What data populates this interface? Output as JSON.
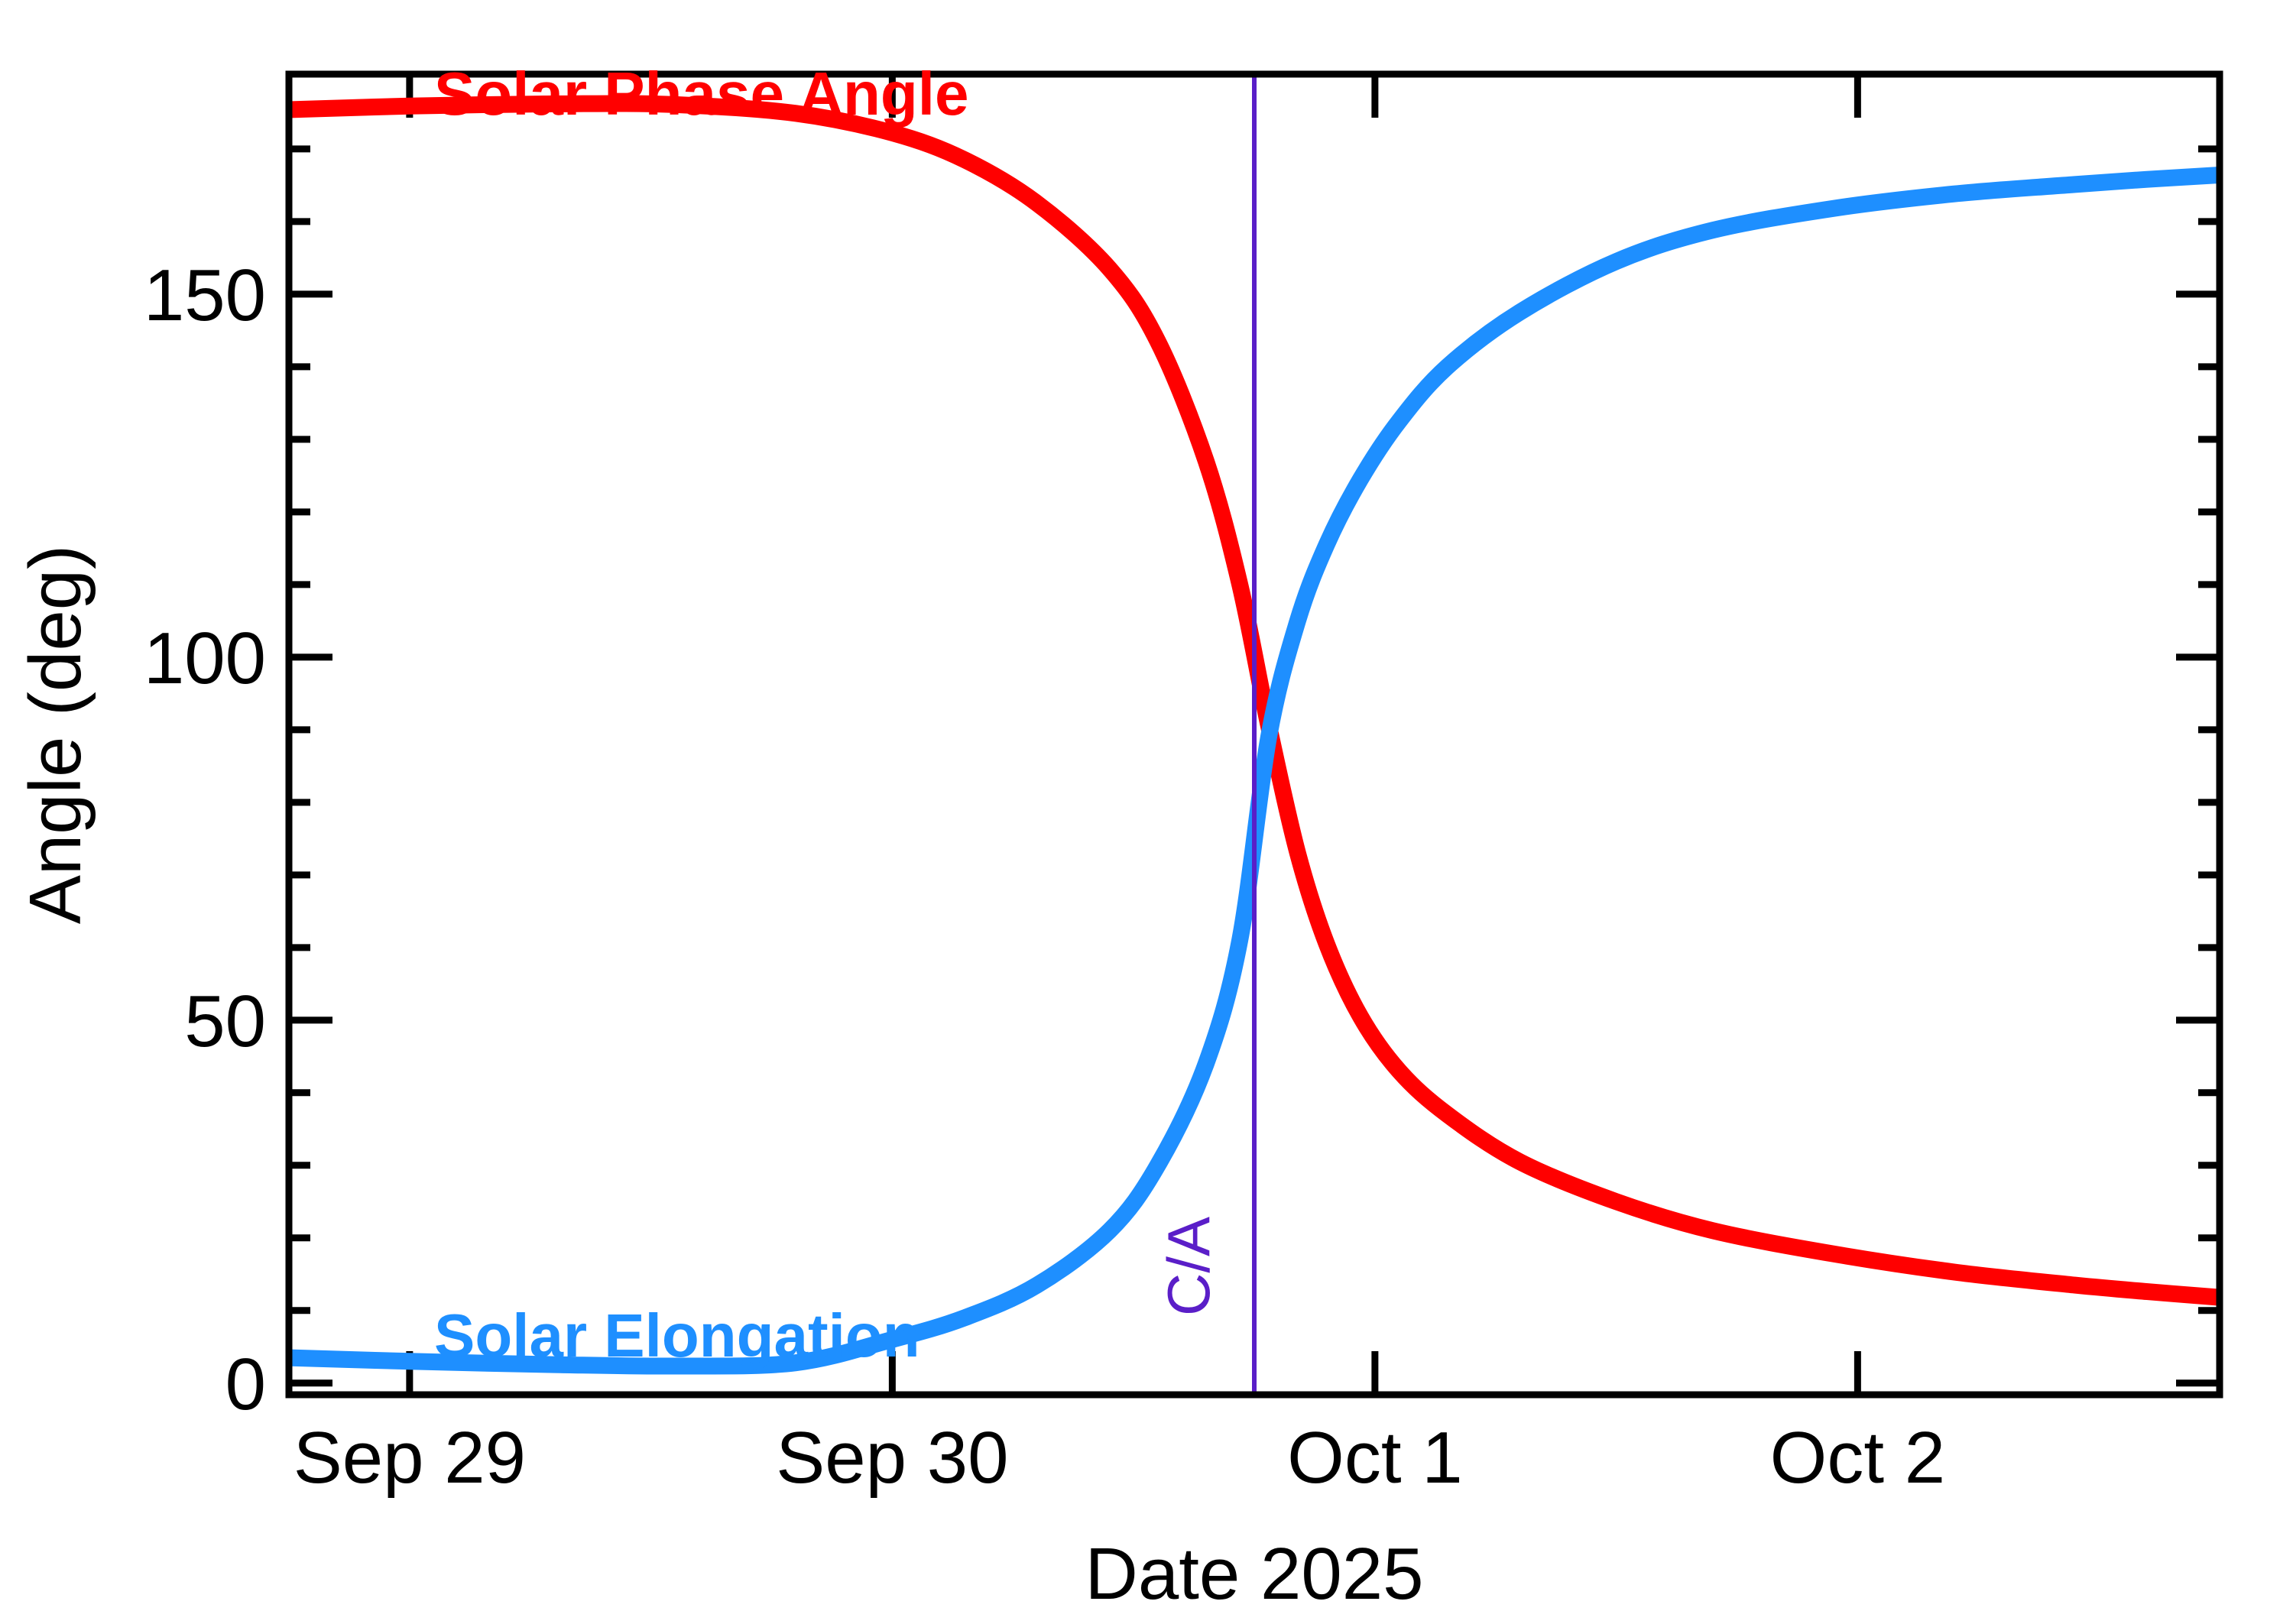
{
  "figure": {
    "x_axis_title": "Date 2025",
    "y_axis_title": "Angle (deg)",
    "background": "#FFFFFF"
  },
  "labels": {
    "phase": "Solar Phase Angle",
    "elongation": "Solar Elongation",
    "close_approach": "C/A"
  },
  "colors": {
    "phase": "#FF0000",
    "elongation": "#1E8FFF",
    "close_approach": "#5A1EC8",
    "axis": "#000000"
  },
  "chart_data": {
    "type": "line",
    "title": "",
    "xlabel": "Date 2025",
    "ylabel": "Angle (deg)",
    "x_unit": "days since Sep 29 2025 00:00 UT",
    "xlim": [
      -0.25,
      3.75
    ],
    "ylim": [
      -1.6,
      180.3
    ],
    "grid": false,
    "x_ticks": [
      {
        "t": 0,
        "label": "Sep 29"
      },
      {
        "t": 1,
        "label": "Sep 30"
      },
      {
        "t": 2,
        "label": "Oct  1"
      },
      {
        "t": 3,
        "label": "Oct  2"
      }
    ],
    "y_major_ticks": [
      0,
      50,
      100,
      150
    ],
    "y_minor_ticks": [
      10,
      20,
      30,
      40,
      60,
      70,
      80,
      90,
      110,
      120,
      130,
      140,
      160,
      170
    ],
    "series": [
      {
        "name": "Solar Phase Angle",
        "color": "#FF0000",
        "points": [
          [
            -0.25,
            175.4
          ],
          [
            0.0,
            175.9
          ],
          [
            0.3,
            176.2
          ],
          [
            0.55,
            176.1
          ],
          [
            0.8,
            174.9
          ],
          [
            1.0,
            172.2
          ],
          [
            1.15,
            168.5
          ],
          [
            1.3,
            162.5
          ],
          [
            1.45,
            153.5
          ],
          [
            1.55,
            143.5
          ],
          [
            1.65,
            127
          ],
          [
            1.72,
            110
          ],
          [
            1.78,
            90.5
          ],
          [
            1.84,
            73
          ],
          [
            1.9,
            60.5
          ],
          [
            1.97,
            50.5
          ],
          [
            2.05,
            43
          ],
          [
            2.15,
            37
          ],
          [
            2.3,
            30.5
          ],
          [
            2.5,
            25
          ],
          [
            2.7,
            21
          ],
          [
            2.95,
            17.8
          ],
          [
            3.2,
            15.3
          ],
          [
            3.45,
            13.5
          ],
          [
            3.6,
            12.6
          ],
          [
            3.75,
            11.8
          ]
        ]
      },
      {
        "name": "Solar Elongation",
        "color": "#1E8FFF",
        "points": [
          [
            -0.25,
            3.5
          ],
          [
            0.0,
            3.0
          ],
          [
            0.3,
            2.55
          ],
          [
            0.55,
            2.35
          ],
          [
            0.8,
            2.8
          ],
          [
            1.0,
            6.0
          ],
          [
            1.15,
            9.0
          ],
          [
            1.3,
            13.5
          ],
          [
            1.45,
            21
          ],
          [
            1.55,
            30
          ],
          [
            1.65,
            44
          ],
          [
            1.72,
            61
          ],
          [
            1.78,
            89
          ],
          [
            1.84,
            105
          ],
          [
            1.9,
            115.5
          ],
          [
            1.97,
            124.5
          ],
          [
            2.05,
            132.5
          ],
          [
            2.15,
            140
          ],
          [
            2.3,
            147.5
          ],
          [
            2.5,
            154.5
          ],
          [
            2.7,
            158.8
          ],
          [
            2.95,
            161.8
          ],
          [
            3.2,
            163.8
          ],
          [
            3.45,
            165.1
          ],
          [
            3.6,
            165.8
          ],
          [
            3.75,
            166.4
          ]
        ]
      }
    ],
    "annotations": [
      {
        "type": "vline",
        "t": 1.75,
        "label": "C/A",
        "color": "#5A1EC8",
        "meaning": "close approach"
      }
    ]
  }
}
